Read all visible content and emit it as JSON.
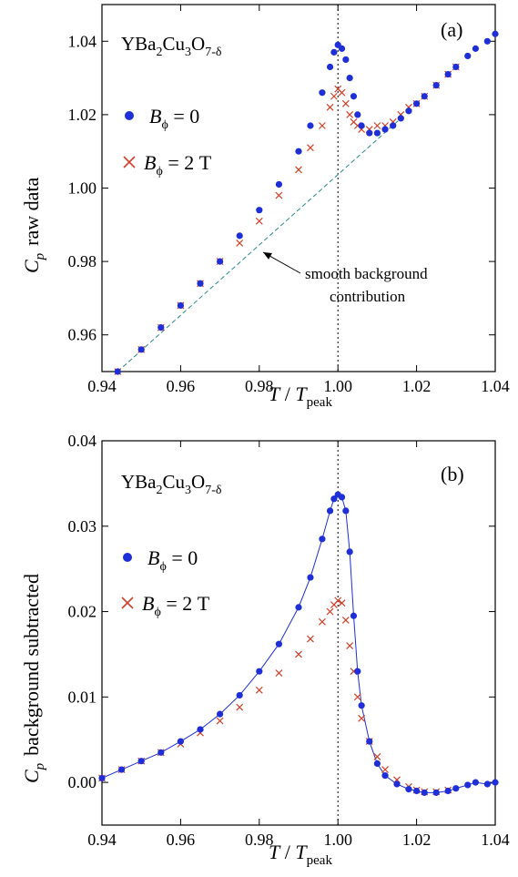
{
  "chart_data": [
    {
      "type": "scatter",
      "panel_label": "(a)",
      "compound": {
        "main": "YBa",
        "s1": "2",
        "m2": "Cu",
        "s2": "3",
        "m3": "O",
        "s3": "7-δ"
      },
      "xlabel": {
        "T": "T",
        "slash": " / ",
        "Tp": "T",
        "sub": "peak"
      },
      "ylabel": {
        "C": "C",
        "sub": "p",
        "rest": "raw data"
      },
      "xlim": [
        0.94,
        1.04
      ],
      "ylim": [
        0.95,
        1.05
      ],
      "xticks": [
        "0.94",
        "0.96",
        "0.98",
        "1.00",
        "1.02",
        "1.04"
      ],
      "yticks": [
        "0.96",
        "0.98",
        "1.00",
        "1.02",
        "1.04"
      ],
      "xtick_values": [
        0.94,
        0.96,
        0.98,
        1.0,
        1.02,
        1.04
      ],
      "ytick_values": [
        0.96,
        0.98,
        1.0,
        1.02,
        1.04
      ],
      "vline_x": 1.0,
      "legend": [
        {
          "B": "B",
          "sub": "ϕ",
          "text": " = 0",
          "marker": "dot",
          "color": "#1f2fd8"
        },
        {
          "B": "B",
          "sub": "ϕ",
          "text": " = 2 T",
          "marker": "cross",
          "color": "#d2402a"
        }
      ],
      "annotation": {
        "line1": "smooth background",
        "line2": "contribution",
        "arrow_to": [
          0.981,
          0.9825
        ]
      },
      "background_line": {
        "x": [
          0.944,
          1.016
        ],
        "y": [
          0.95,
          1.019
        ],
        "color": "#2a8a8a"
      },
      "series": [
        {
          "name": "B_ϕ = 0",
          "marker": "dot",
          "color": "#1f2fd8",
          "x": [
            0.944,
            0.95,
            0.955,
            0.96,
            0.965,
            0.97,
            0.975,
            0.98,
            0.985,
            0.99,
            0.993,
            0.996,
            0.998,
            0.999,
            1.0,
            1.001,
            1.002,
            1.003,
            1.004,
            1.005,
            1.006,
            1.008,
            1.01,
            1.012,
            1.014,
            1.016,
            1.018,
            1.02,
            1.022,
            1.025,
            1.028,
            1.03,
            1.033,
            1.035,
            1.038,
            1.04
          ],
          "y": [
            0.95,
            0.956,
            0.962,
            0.968,
            0.974,
            0.98,
            0.987,
            0.994,
            1.001,
            1.01,
            1.017,
            1.026,
            1.033,
            1.037,
            1.039,
            1.038,
            1.035,
            1.03,
            1.025,
            1.02,
            1.017,
            1.015,
            1.015,
            1.016,
            1.017,
            1.019,
            1.021,
            1.023,
            1.025,
            1.028,
            1.031,
            1.033,
            1.036,
            1.038,
            1.04,
            1.042
          ]
        },
        {
          "name": "B_ϕ = 2 T",
          "marker": "cross",
          "color": "#d2402a",
          "x": [
            0.944,
            0.95,
            0.955,
            0.96,
            0.965,
            0.97,
            0.975,
            0.98,
            0.985,
            0.99,
            0.993,
            0.996,
            0.998,
            0.999,
            1.0,
            1.001,
            1.002,
            1.003,
            1.004,
            1.005,
            1.006,
            1.008,
            1.01,
            1.012,
            1.014,
            1.016,
            1.018,
            1.02,
            1.022,
            1.025,
            1.028,
            1.03
          ],
          "y": [
            0.95,
            0.956,
            0.962,
            0.968,
            0.974,
            0.98,
            0.985,
            0.991,
            0.998,
            1.005,
            1.011,
            1.017,
            1.022,
            1.025,
            1.027,
            1.026,
            1.023,
            1.02,
            1.018,
            1.017,
            1.016,
            1.016,
            1.017,
            1.017,
            1.018,
            1.02,
            1.022,
            1.023,
            1.025,
            1.028,
            1.031,
            1.033
          ]
        }
      ]
    },
    {
      "type": "scatter",
      "panel_label": "(b)",
      "compound": {
        "main": "YBa",
        "s1": "2",
        "m2": "Cu",
        "s2": "3",
        "m3": "O",
        "s3": "7-δ"
      },
      "xlabel": {
        "T": "T",
        "slash": " / ",
        "Tp": "T",
        "sub": "peak"
      },
      "ylabel": {
        "C": "C",
        "sub": "p",
        "rest": "background subtracted"
      },
      "xlim": [
        0.94,
        1.04
      ],
      "ylim": [
        -0.005,
        0.04
      ],
      "xticks": [
        "0.94",
        "0.96",
        "0.98",
        "1.00",
        "1.02",
        "1.04"
      ],
      "yticks": [
        "0.00",
        "0.01",
        "0.02",
        "0.03",
        "0.04"
      ],
      "xtick_values": [
        0.94,
        0.96,
        0.98,
        1.0,
        1.02,
        1.04
      ],
      "ytick_values": [
        0.0,
        0.01,
        0.02,
        0.03,
        0.04
      ],
      "vline_x": 1.0,
      "legend": [
        {
          "B": "B",
          "sub": "ϕ",
          "text": " = 0",
          "marker": "dot",
          "color": "#1f2fd8"
        },
        {
          "B": "B",
          "sub": "ϕ",
          "text": " = 2 T",
          "marker": "cross",
          "color": "#d2402a"
        }
      ],
      "series": [
        {
          "name": "B_ϕ = 0",
          "marker": "dot",
          "color": "#1f2fd8",
          "x": [
            0.94,
            0.945,
            0.95,
            0.955,
            0.96,
            0.965,
            0.97,
            0.975,
            0.98,
            0.985,
            0.99,
            0.993,
            0.996,
            0.998,
            0.999,
            1.0,
            1.001,
            1.002,
            1.003,
            1.004,
            1.005,
            1.006,
            1.008,
            1.01,
            1.012,
            1.015,
            1.018,
            1.02,
            1.022,
            1.025,
            1.028,
            1.03,
            1.033,
            1.035,
            1.038,
            1.04
          ],
          "y": [
            0.0005,
            0.0015,
            0.0025,
            0.0035,
            0.0048,
            0.0062,
            0.008,
            0.0102,
            0.013,
            0.0162,
            0.0205,
            0.024,
            0.0285,
            0.0318,
            0.0332,
            0.0337,
            0.0334,
            0.0318,
            0.027,
            0.0195,
            0.013,
            0.009,
            0.0048,
            0.0022,
            0.0008,
            -0.0002,
            -0.0008,
            -0.001,
            -0.0012,
            -0.0012,
            -0.001,
            -0.0007,
            -0.0003,
            0.0,
            -0.0002,
            0.0
          ]
        },
        {
          "name": "B_ϕ = 2 T",
          "marker": "cross",
          "color": "#d2402a",
          "x": [
            0.94,
            0.945,
            0.95,
            0.955,
            0.96,
            0.965,
            0.97,
            0.975,
            0.98,
            0.985,
            0.99,
            0.993,
            0.996,
            0.998,
            0.999,
            1.0,
            1.001,
            1.002,
            1.003,
            1.004,
            1.005,
            1.006,
            1.008,
            1.01,
            1.012,
            1.015,
            1.018,
            1.02,
            1.022,
            1.025,
            1.028
          ],
          "y": [
            0.0005,
            0.0015,
            0.0025,
            0.0035,
            0.0045,
            0.0058,
            0.0072,
            0.0088,
            0.0108,
            0.0128,
            0.015,
            0.0168,
            0.0188,
            0.02,
            0.0208,
            0.0213,
            0.021,
            0.019,
            0.016,
            0.013,
            0.01,
            0.0075,
            0.0048,
            0.003,
            0.0015,
            0.0003,
            -0.0005,
            -0.0009,
            -0.0011,
            -0.0011,
            -0.0009
          ]
        }
      ]
    }
  ]
}
